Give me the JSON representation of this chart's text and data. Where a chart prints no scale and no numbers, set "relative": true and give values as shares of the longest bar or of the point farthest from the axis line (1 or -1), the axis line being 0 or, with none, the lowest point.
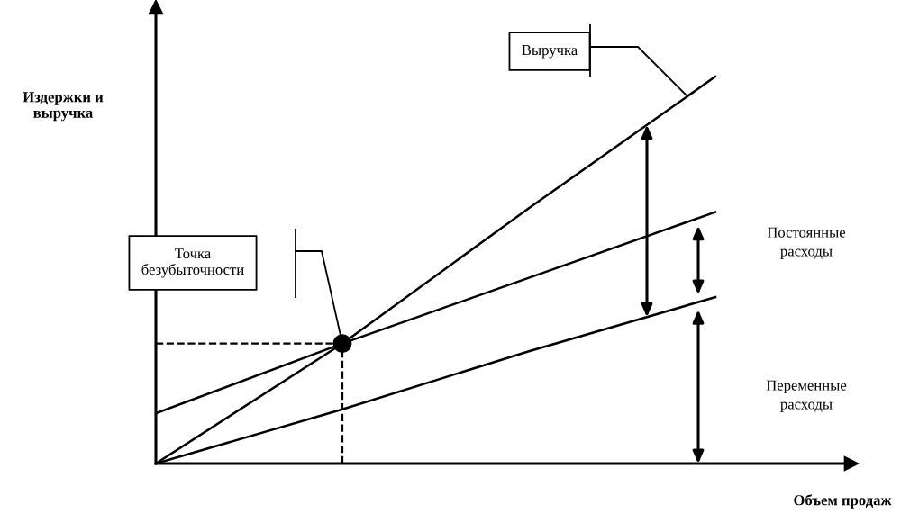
{
  "chart_data": {
    "type": "line",
    "relative": true,
    "xlabel": "Объем продаж",
    "ylabel": "Издержки и\nвыручка",
    "categories": [
      null,
      null,
      null,
      null
    ],
    "series": [
      {
        "color": "#000000",
        "values": [
          0,
          0.31,
          0.66,
          1
        ]
      },
      {
        "color": "#000000",
        "values": [
          0.13,
          0.31,
          0.48,
          0.65
        ]
      },
      {
        "color": "#000000",
        "values": [
          0,
          0.14,
          0.29,
          0.43
        ]
      }
    ],
    "annotations": [
      "Выручка",
      "Точка\nбезубыточности",
      "Постоянные\nрасходы",
      "Переменные\nрасходы"
    ]
  }
}
